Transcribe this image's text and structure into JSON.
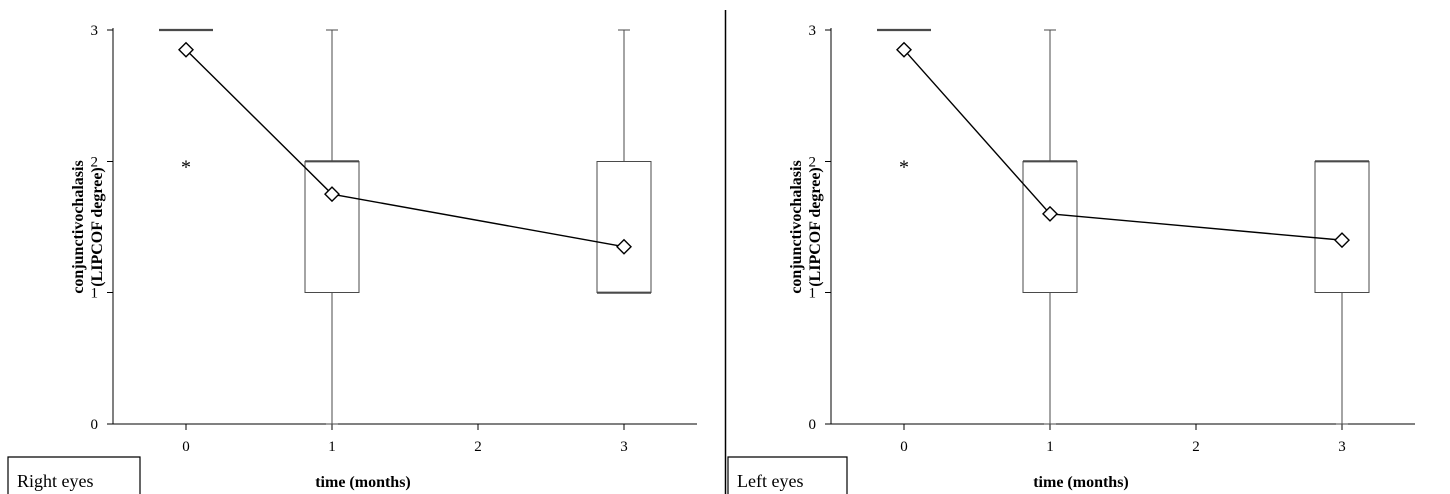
{
  "chart_data": [
    {
      "type": "box",
      "panel_label": "Right eyes",
      "xlabel": "time (months)",
      "ylabel_lines": [
        "conjunctivochalasis",
        "(LIPCOF degree)"
      ],
      "xticks": [
        0,
        1,
        2,
        3
      ],
      "yticks": [
        0,
        1,
        2,
        3
      ],
      "xlim": [
        -0.5,
        3.5
      ],
      "ylim": [
        0,
        3
      ],
      "boxes": [
        {
          "x": 0,
          "min": 3,
          "q1": 3,
          "median": 3,
          "q3": 3,
          "max": 3
        },
        {
          "x": 1,
          "min": 0,
          "q1": 1,
          "median": 2,
          "q3": 2,
          "max": 3
        },
        {
          "x": 3,
          "min": 1,
          "q1": 1,
          "median": 1,
          "q3": 2,
          "max": 3
        }
      ],
      "outliers": [
        {
          "x": 0,
          "y": 2
        }
      ],
      "means": {
        "x": [
          0,
          1,
          3
        ],
        "y": [
          2.85,
          1.75,
          1.35
        ]
      }
    },
    {
      "type": "box",
      "panel_label": "Left eyes",
      "xlabel": "time (months)",
      "ylabel_lines": [
        "conjunctivochalasis",
        "(LIPCOF degree)"
      ],
      "xticks": [
        0,
        1,
        2,
        3
      ],
      "yticks": [
        0,
        1,
        2,
        3
      ],
      "xlim": [
        -0.5,
        3.5
      ],
      "ylim": [
        0,
        3
      ],
      "boxes": [
        {
          "x": 0,
          "min": 3,
          "q1": 3,
          "median": 3,
          "q3": 3,
          "max": 3
        },
        {
          "x": 1,
          "min": 0,
          "q1": 1,
          "median": 2,
          "q3": 2,
          "max": 3
        },
        {
          "x": 3,
          "min": 0,
          "q1": 1,
          "median": 2,
          "q3": 2,
          "max": 2
        }
      ],
      "outliers": [
        {
          "x": 0,
          "y": 2
        }
      ],
      "means": {
        "x": [
          0,
          1,
          3
        ],
        "y": [
          2.85,
          1.6,
          1.4
        ]
      }
    }
  ]
}
